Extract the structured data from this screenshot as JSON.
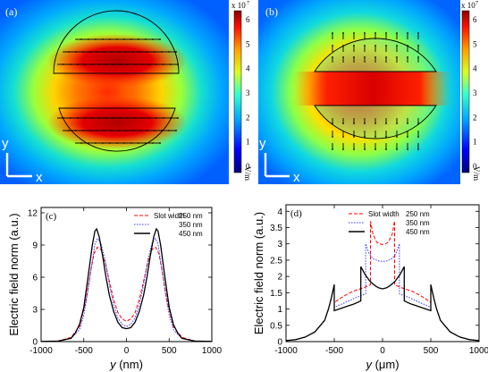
{
  "panels": {
    "a": {
      "label": "(a)",
      "colorbar": {
        "scale": "x 10",
        "exp": "7",
        "unit": "V/m",
        "ticks": [
          "0",
          "1",
          "2",
          "3",
          "4",
          "5",
          "6"
        ]
      },
      "axis_y": "y",
      "axis_x": "x"
    },
    "b": {
      "label": "(b)",
      "colorbar": {
        "scale": "x 10",
        "exp": "7",
        "unit": "V/m",
        "ticks": [
          "0",
          "1",
          "2",
          "3",
          "4",
          "5",
          "6"
        ]
      },
      "axis_y": "y",
      "axis_x": "x"
    }
  },
  "chart_data": [
    {
      "panel": "c",
      "label": "(c)",
      "type": "line",
      "xlabel": "y (nm)",
      "ylabel": "Electric field norm (a.u.)",
      "xlim": [
        -1000,
        1000
      ],
      "ylim": [
        0,
        12.5
      ],
      "xticks": [
        -1000,
        -500,
        0,
        500,
        1000
      ],
      "yticks": [
        0,
        3,
        6,
        9,
        12
      ],
      "legend_position": "top-right",
      "legend_title": "Slot width",
      "series": [
        {
          "name": "250 nm",
          "color": "#ff0000",
          "dash": "4,2",
          "x": [
            -1000,
            -800,
            -650,
            -550,
            -480,
            -420,
            -380,
            -340,
            -300,
            -250,
            -200,
            -150,
            -100,
            -50,
            0,
            50,
            100,
            150,
            200,
            250,
            300,
            340,
            380,
            420,
            480,
            550,
            650,
            800,
            1000
          ],
          "y": [
            0.02,
            0.05,
            0.4,
            1.4,
            3.6,
            6.5,
            8.2,
            8.8,
            8.6,
            7.4,
            5.6,
            3.9,
            2.7,
            2.1,
            1.9,
            2.1,
            2.7,
            3.9,
            5.6,
            7.4,
            8.6,
            8.8,
            8.2,
            6.5,
            3.6,
            1.4,
            0.4,
            0.05,
            0.02
          ]
        },
        {
          "name": "350 nm",
          "color": "#3333ff",
          "dash": "1.5,1.5",
          "x": [
            -1000,
            -800,
            -650,
            -550,
            -500,
            -450,
            -400,
            -370,
            -340,
            -300,
            -250,
            -200,
            -150,
            -100,
            -50,
            0,
            50,
            100,
            150,
            200,
            250,
            300,
            340,
            370,
            400,
            450,
            500,
            550,
            650,
            800,
            1000
          ],
          "y": [
            0.02,
            0.05,
            0.3,
            1.1,
            2.5,
            4.8,
            7.5,
            9.1,
            9.6,
            9.2,
            7.6,
            5.3,
            3.4,
            2.2,
            1.6,
            1.4,
            1.6,
            2.2,
            3.4,
            5.3,
            7.6,
            9.2,
            9.6,
            9.1,
            7.5,
            4.8,
            2.5,
            1.1,
            0.3,
            0.05,
            0.02
          ]
        },
        {
          "name": "450 nm",
          "color": "#000000",
          "dash": "",
          "x": [
            -1000,
            -800,
            -650,
            -600,
            -550,
            -500,
            -450,
            -400,
            -370,
            -350,
            -320,
            -280,
            -240,
            -200,
            -150,
            -100,
            -50,
            0,
            50,
            100,
            150,
            200,
            240,
            280,
            320,
            350,
            370,
            400,
            450,
            500,
            550,
            600,
            650,
            800,
            1000
          ],
          "y": [
            0.02,
            0.05,
            0.3,
            0.8,
            1.6,
            3.2,
            6.0,
            9.0,
            10.3,
            10.5,
            9.8,
            8.0,
            6.0,
            4.3,
            2.8,
            1.8,
            1.3,
            1.2,
            1.3,
            1.8,
            2.8,
            4.3,
            6.0,
            8.0,
            9.8,
            10.5,
            10.3,
            9.0,
            6.0,
            3.2,
            1.6,
            0.8,
            0.3,
            0.05,
            0.02
          ]
        }
      ]
    },
    {
      "panel": "d",
      "label": "(d)",
      "type": "line",
      "xlabel": "y (μm)",
      "ylabel": "Electric field norm (a.u.)",
      "xlim": [
        -1000,
        1000
      ],
      "ylim": [
        0,
        4.2
      ],
      "xticks": [
        -1000,
        -500,
        0,
        500,
        1000
      ],
      "yticks": [
        0,
        0.5,
        1,
        1.5,
        2,
        2.5,
        3,
        3.5,
        4
      ],
      "legend_position": "top-right",
      "legend_title": "Slot width",
      "series": [
        {
          "name": "250 nm",
          "color": "#ff0000",
          "dash": "4,2",
          "x": [
            -1000,
            -900,
            -800,
            -700,
            -600,
            -560,
            -530,
            -500,
            -500,
            -450,
            -400,
            -350,
            -300,
            -250,
            -200,
            -160,
            -140,
            -125,
            -125,
            -100,
            -60,
            -30,
            0,
            30,
            60,
            100,
            125,
            125,
            140,
            160,
            200,
            250,
            300,
            350,
            400,
            450,
            500,
            500,
            530,
            560,
            600,
            700,
            800,
            900,
            1000
          ],
          "y": [
            0.03,
            0.06,
            0.14,
            0.3,
            0.65,
            1.0,
            1.35,
            1.75,
            1.2,
            1.3,
            1.4,
            1.48,
            1.55,
            1.6,
            1.65,
            1.7,
            1.72,
            1.75,
            3.7,
            3.3,
            3.05,
            3.0,
            2.98,
            3.0,
            3.05,
            3.3,
            3.7,
            1.75,
            1.72,
            1.7,
            1.65,
            1.6,
            1.55,
            1.48,
            1.4,
            1.3,
            1.2,
            1.75,
            1.35,
            1.0,
            0.65,
            0.3,
            0.14,
            0.06,
            0.03
          ]
        },
        {
          "name": "350 nm",
          "color": "#3333ff",
          "dash": "1.5,1.5",
          "x": [
            -1000,
            -900,
            -800,
            -700,
            -600,
            -560,
            -530,
            -500,
            -500,
            -450,
            -400,
            -350,
            -300,
            -250,
            -210,
            -190,
            -175,
            -175,
            -140,
            -100,
            -50,
            0,
            50,
            100,
            140,
            175,
            175,
            190,
            210,
            250,
            300,
            350,
            400,
            450,
            500,
            500,
            530,
            560,
            600,
            700,
            800,
            900,
            1000
          ],
          "y": [
            0.03,
            0.06,
            0.14,
            0.3,
            0.65,
            1.0,
            1.35,
            1.75,
            1.05,
            1.12,
            1.18,
            1.25,
            1.32,
            1.38,
            1.42,
            1.45,
            1.47,
            3.0,
            2.7,
            2.55,
            2.48,
            2.46,
            2.48,
            2.55,
            2.7,
            3.0,
            1.47,
            1.45,
            1.42,
            1.38,
            1.32,
            1.25,
            1.18,
            1.12,
            1.05,
            1.75,
            1.35,
            1.0,
            0.65,
            0.3,
            0.14,
            0.06,
            0.03
          ]
        },
        {
          "name": "450 nm",
          "color": "#000000",
          "dash": "",
          "x": [
            -1000,
            -900,
            -800,
            -700,
            -600,
            -560,
            -530,
            -500,
            -500,
            -450,
            -400,
            -350,
            -300,
            -260,
            -240,
            -225,
            -225,
            -180,
            -130,
            -80,
            -40,
            0,
            40,
            80,
            130,
            180,
            225,
            225,
            240,
            260,
            300,
            350,
            400,
            450,
            500,
            500,
            530,
            560,
            600,
            700,
            800,
            900,
            1000
          ],
          "y": [
            0.03,
            0.06,
            0.14,
            0.3,
            0.65,
            1.0,
            1.35,
            1.75,
            0.95,
            1.0,
            1.05,
            1.1,
            1.15,
            1.2,
            1.23,
            1.25,
            2.3,
            2.05,
            1.85,
            1.72,
            1.65,
            1.62,
            1.65,
            1.72,
            1.85,
            2.05,
            2.3,
            1.25,
            1.23,
            1.2,
            1.15,
            1.1,
            1.05,
            1.0,
            0.95,
            1.75,
            1.35,
            1.0,
            0.65,
            0.3,
            0.14,
            0.06,
            0.03
          ]
        }
      ]
    }
  ]
}
